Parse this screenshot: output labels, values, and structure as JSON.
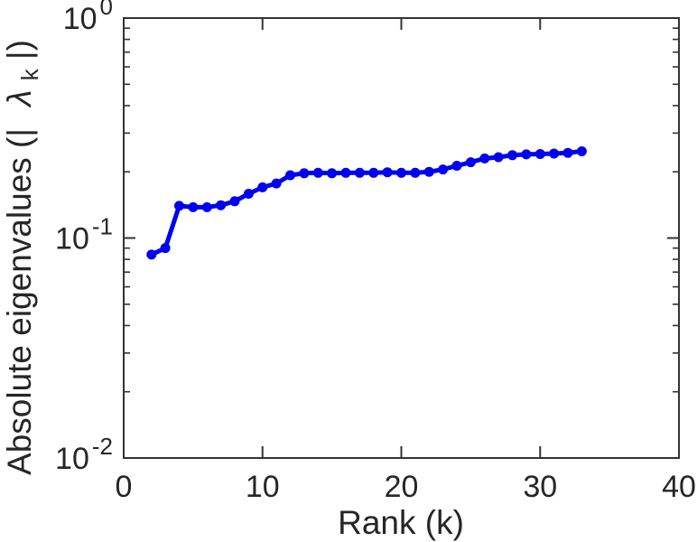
{
  "figure": {
    "background": "#ffffff",
    "axis_color": "#262626",
    "frame_color": "#333333"
  },
  "chart_data": {
    "type": "line",
    "title": "",
    "xlabel": "Rank (k)",
    "ylabel": "Absolute eigenvalues (| λ_k|)",
    "ylabel_parts": {
      "prefix": "Absolute eigenvalues (|",
      "symbol": "λ",
      "subscript": "k",
      "suffix": "|)"
    },
    "x": [
      2,
      3,
      4,
      5,
      6,
      7,
      8,
      9,
      10,
      11,
      12,
      13,
      14,
      15,
      16,
      17,
      18,
      19,
      20,
      21,
      22,
      23,
      24,
      25,
      26,
      27,
      28,
      29,
      30,
      31,
      32,
      33
    ],
    "series": [
      {
        "name": "absolute-eigenvalues",
        "values": [
          0.084,
          0.09,
          0.14,
          0.138,
          0.138,
          0.141,
          0.147,
          0.159,
          0.17,
          0.177,
          0.193,
          0.197,
          0.198,
          0.197,
          0.198,
          0.198,
          0.198,
          0.199,
          0.198,
          0.198,
          0.2,
          0.205,
          0.213,
          0.221,
          0.23,
          0.233,
          0.238,
          0.24,
          0.241,
          0.242,
          0.244,
          0.248
        ],
        "color": "#0000f0",
        "marker": "circle",
        "line_width": 5,
        "marker_radius": 5.5
      }
    ],
    "xlim": [
      0,
      40
    ],
    "ylim": [
      0.01,
      1
    ],
    "yscale": "log",
    "xscale": "linear",
    "x_ticks": [
      0,
      10,
      20,
      30,
      40
    ],
    "y_ticks": [
      {
        "value": 1,
        "base": "10",
        "exp": "0"
      },
      {
        "value": 0.1,
        "base": "10",
        "exp": "-1"
      },
      {
        "value": 0.01,
        "base": "10",
        "exp": "-2"
      }
    ],
    "grid": false,
    "legend": null,
    "box": true,
    "tick_direction": "in"
  }
}
